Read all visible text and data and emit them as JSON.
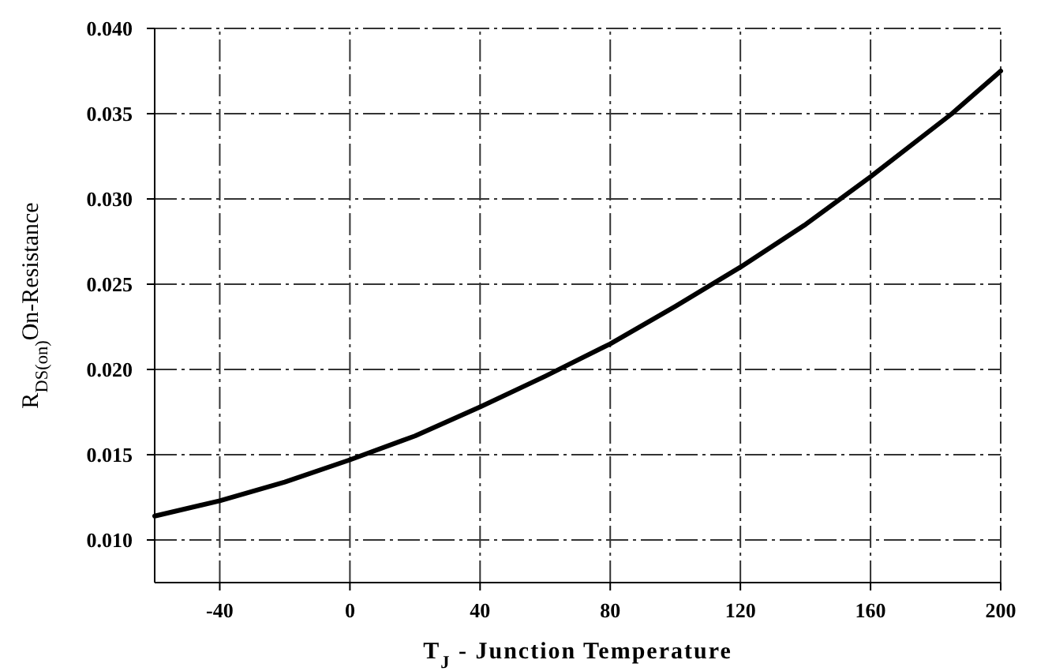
{
  "chart_data": {
    "type": "line",
    "xlabel": "T$_{J}$ - Junction Temperature",
    "ylabel": "R$_{DS(on)}$On-Resistance",
    "x": [
      -60,
      -40,
      -20,
      0,
      20,
      40,
      60,
      80,
      100,
      120,
      140,
      160,
      185,
      200
    ],
    "series": [
      {
        "color": "#000000",
        "values": [
          0.0114,
          0.0123,
          0.0134,
          0.0147,
          0.0161,
          0.0178,
          0.0196,
          0.0215,
          0.0237,
          0.026,
          0.0285,
          0.0313,
          0.035,
          0.0375
        ]
      }
    ],
    "xlim": [
      -60,
      200
    ],
    "xticks": [
      -40,
      0,
      40,
      80,
      120,
      160,
      200
    ],
    "ylim": [
      0.0075,
      0.04
    ],
    "yticks": [
      {
        "value": 0.01,
        "label": "0.010"
      },
      {
        "value": 0.015,
        "label": "0.015"
      },
      {
        "value": 0.02,
        "label": "0.020"
      },
      {
        "value": 0.025,
        "label": "0.025"
      },
      {
        "value": 0.03,
        "label": "0.030"
      },
      {
        "value": 0.035,
        "label": "0.035"
      },
      {
        "value": 0.04,
        "label": "0.040"
      }
    ],
    "grid": true,
    "marker": "none",
    "line_style": "solid"
  }
}
